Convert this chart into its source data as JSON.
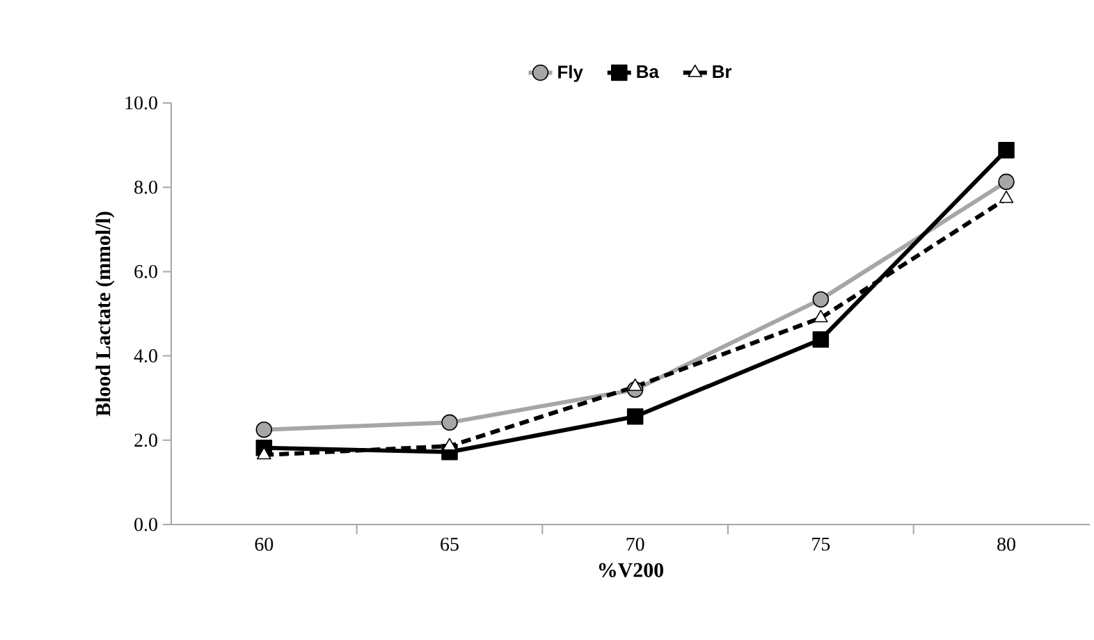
{
  "chart_data": {
    "type": "line",
    "xlabel": "%V200",
    "ylabel": "Blood Lactate (mmol/l)",
    "categories": [
      "60",
      "65",
      "70",
      "75",
      "80"
    ],
    "series": [
      {
        "name": "Fly",
        "color": "#a6a6a6",
        "marker": "circle",
        "line_style": "solid",
        "values": [
          2.25,
          2.42,
          3.2,
          5.34,
          8.13
        ]
      },
      {
        "name": "Ba",
        "color": "#000000",
        "marker": "square",
        "line_style": "solid",
        "values": [
          1.82,
          1.72,
          2.56,
          4.39,
          8.88
        ]
      },
      {
        "name": "Br",
        "color": "#000000",
        "marker": "triangle",
        "line_style": "dashed",
        "values": [
          1.65,
          1.86,
          3.27,
          4.9,
          7.73
        ]
      }
    ],
    "ylim": [
      0,
      10
    ],
    "yticks": [
      {
        "value": 0,
        "label": "0.0"
      },
      {
        "value": 2,
        "label": "2.0"
      },
      {
        "value": 4,
        "label": "4.0"
      },
      {
        "value": 6,
        "label": "6.0"
      },
      {
        "value": 8,
        "label": "8.0"
      },
      {
        "value": 10,
        "label": "10.0"
      }
    ],
    "grid": false,
    "legend": "top"
  }
}
